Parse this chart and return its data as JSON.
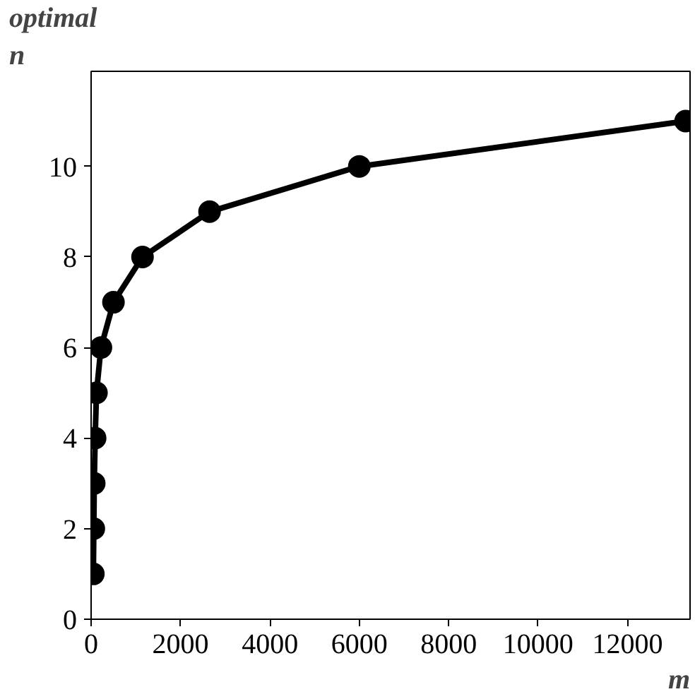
{
  "chart_data": {
    "type": "line",
    "xlabel": "m",
    "ylabel": "optimal\nn",
    "x": [
      50,
      60,
      70,
      90,
      120,
      220,
      500,
      1150,
      2650,
      6000,
      13300
    ],
    "series": [
      {
        "color": "#000000",
        "values": [
          1,
          2,
          3,
          4,
          5,
          6,
          7,
          8,
          9,
          10,
          11
        ]
      }
    ],
    "xlim": [
      0,
      13400
    ],
    "ylim": [
      0,
      12.1
    ],
    "xticks": [
      0,
      2000,
      4000,
      6000,
      8000,
      10000,
      12000
    ],
    "yticks": [
      0,
      2,
      4,
      6,
      8,
      10
    ],
    "grid": false,
    "marker": "circle",
    "line_style": "solid"
  }
}
